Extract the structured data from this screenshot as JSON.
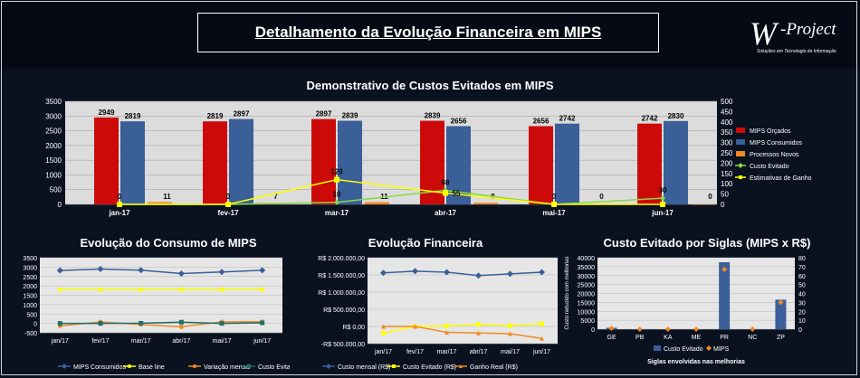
{
  "header": {
    "title": "Detalhamento da Evolução Financeira em MIPS"
  },
  "logo": {
    "w": "W",
    "name": "-Project",
    "tagline": "Soluções em Tecnologia da Informação"
  },
  "chart_data": [
    {
      "type": "bar",
      "title": "Demonstrativo de Custos Evitados em MIPS",
      "categories": [
        "jan-17",
        "fev-17",
        "mar-17",
        "abr-17",
        "mai-17",
        "jun-17"
      ],
      "ylim": [
        0,
        3500
      ],
      "y2lim": [
        0,
        500
      ],
      "yticks": [
        "0",
        "500",
        "1000",
        "1500",
        "2000",
        "2500",
        "3000",
        "3500"
      ],
      "y2ticks": [
        "0",
        "50",
        "100",
        "150",
        "200",
        "250",
        "300",
        "350",
        "400",
        "450",
        "500"
      ],
      "series": [
        {
          "name": "MIPS Orçados",
          "axis": "left",
          "color": "#cc0a0a",
          "values": [
            2949,
            2819,
            2897,
            2839,
            2656,
            2742
          ],
          "labels": [
            "2949",
            "2819",
            "2897",
            "2839",
            "2656",
            "2742"
          ]
        },
        {
          "name": "MIPS Consumidos",
          "axis": "left",
          "color": "#3a5f99",
          "values": [
            2819,
            2897,
            2839,
            2656,
            2742,
            2830
          ],
          "labels": [
            "2819",
            "2897",
            "2839",
            "2656",
            "2742",
            "2830"
          ]
        },
        {
          "name": "Processos Novos",
          "axis": "right",
          "color": "#f08a24",
          "values": [
            11,
            7,
            11,
            8,
            0,
            0
          ],
          "labels": [
            "11",
            "7",
            "11",
            "8",
            "0",
            "0"
          ]
        },
        {
          "name": "Custo Evitado",
          "axis": "right",
          "type": "line",
          "color": "#88d84a",
          "values": [
            0,
            0,
            10,
            68,
            0,
            30
          ],
          "labels": [
            "0",
            "0",
            "10",
            "68",
            "0",
            "30"
          ]
        },
        {
          "name": "Estimativas de Ganho",
          "axis": "right",
          "type": "line",
          "color": "#ffff00",
          "values": [
            0,
            0,
            120,
            55,
            0,
            0
          ],
          "labels": [
            "",
            "",
            "120",
            "55",
            "",
            ""
          ]
        }
      ]
    },
    {
      "type": "line",
      "title": "Evolução do Consumo de MIPS",
      "categories": [
        "jan/17",
        "fev/17",
        "mar/17",
        "abr/17",
        "mai/17",
        "jun/17"
      ],
      "ylim": [
        -500,
        3500
      ],
      "yticks": [
        "-500",
        "0",
        "500",
        "1000",
        "1500",
        "2000",
        "2500",
        "3000",
        "3500"
      ],
      "series": [
        {
          "name": "MIPS Consumidos",
          "color": "#3a5f99",
          "marker": "diamond",
          "values": [
            2819,
            2897,
            2839,
            2656,
            2742,
            2830
          ]
        },
        {
          "name": "Base line",
          "color": "#ffff00",
          "marker": "circle",
          "values": [
            1800,
            1800,
            1800,
            1800,
            1800,
            1800
          ]
        },
        {
          "name": "Variação mensal",
          "color": "#f08a24",
          "marker": "circle",
          "values": [
            -130,
            78,
            -58,
            -183,
            86,
            88
          ]
        },
        {
          "name": "Custo Evitado",
          "color": "#1f6f6a",
          "marker": "square",
          "values": [
            0,
            0,
            10,
            68,
            0,
            30
          ]
        }
      ]
    },
    {
      "type": "line",
      "title": "Evolução Financeira",
      "categories": [
        "jan/17",
        "fev/17",
        "mar/17",
        "abr/17",
        "mai/17",
        "jun/17"
      ],
      "ylim": [
        -500000,
        2000000
      ],
      "yticks": [
        "-R$ 500.000,00",
        "R$ 0,00",
        "R$ 500.000,00",
        "R$ 1.000.000,00",
        "R$ 1.500.000,00",
        "R$ 2.000.000,00"
      ],
      "series": [
        {
          "name": "Custo mensal (R$)",
          "color": "#3a5f99",
          "marker": "diamond",
          "values": [
            1560000,
            1610000,
            1580000,
            1480000,
            1530000,
            1580000
          ]
        },
        {
          "name": "Custo Evitado (R$)",
          "color": "#ffff00",
          "marker": "square",
          "values": [
            -200000,
            0,
            15000,
            60000,
            20000,
            80000
          ]
        },
        {
          "name": "Ganho Real (R$)",
          "color": "#f08a24",
          "marker": "triangle",
          "values": [
            0,
            0,
            -170000,
            -190000,
            -210000,
            -350000
          ]
        }
      ]
    },
    {
      "type": "bar",
      "title": "Custo Evitado por Siglas (MIPS x R$)",
      "xlabel": "Siglas envolvidas nas melhorias",
      "ylabel": "Custo reduzido com melhorias",
      "categories": [
        "GE",
        "PB",
        "KA",
        "ME",
        "PR",
        "NC",
        "ZP"
      ],
      "ylim": [
        0,
        40000
      ],
      "y2lim": [
        0,
        80
      ],
      "yticks": [
        "0",
        "5000",
        "10000",
        "15000",
        "20000",
        "25000",
        "30000",
        "35000",
        "40000"
      ],
      "y2ticks": [
        "0",
        "10",
        "20",
        "30",
        "40",
        "50",
        "60",
        "70",
        "80"
      ],
      "series": [
        {
          "name": "Custo Evitado",
          "axis": "left",
          "color": "#3a5f99",
          "values": [
            800,
            0,
            0,
            0,
            37500,
            0,
            16500
          ]
        },
        {
          "name": "MIPS",
          "axis": "right",
          "color": "#f08a24",
          "marker": "diamond",
          "values": [
            1,
            0,
            0,
            0,
            67,
            0,
            30
          ]
        }
      ]
    }
  ]
}
